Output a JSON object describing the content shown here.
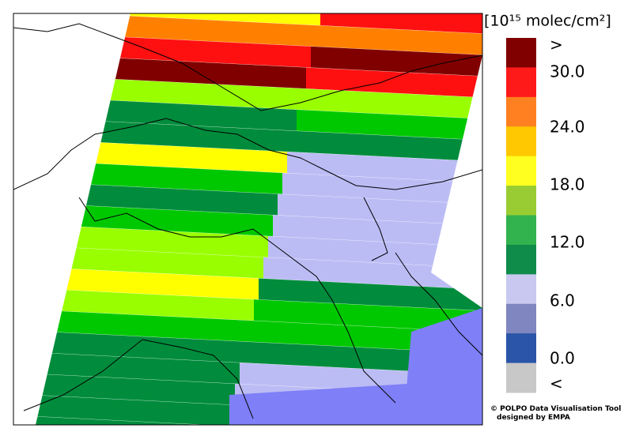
{
  "legend": {
    "unit": "[10¹⁵ molec/cm²]",
    "labels": [
      ">",
      "30.0",
      "24.0",
      "18.0",
      "12.0",
      "6.0",
      "0.0",
      "<"
    ]
  },
  "credits": {
    "line1": "© POLPO Data Visualisation Tool",
    "line2": "designed by EMPA"
  }
}
